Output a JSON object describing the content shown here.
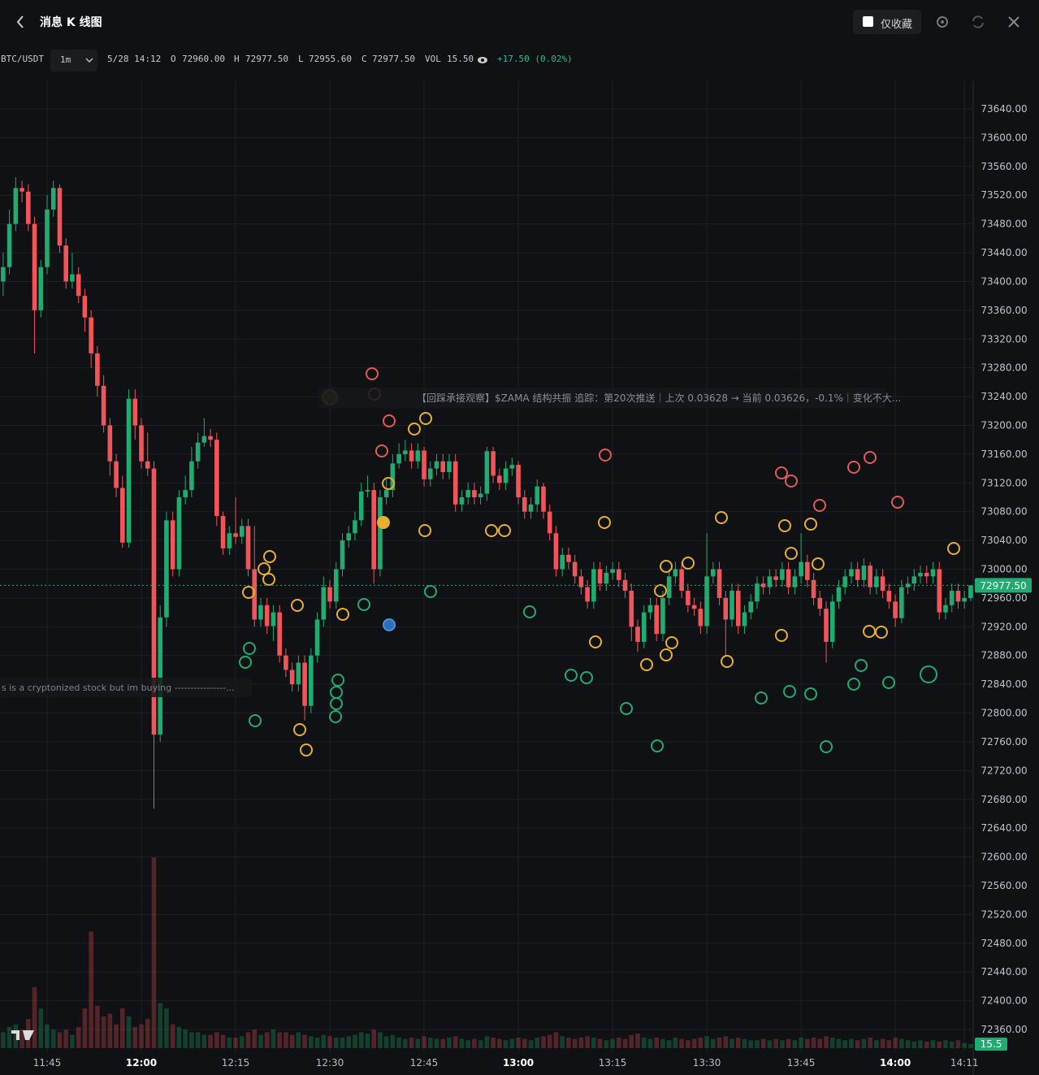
{
  "header": {
    "title": "消息 K 线图",
    "favorites_only": "仅收藏"
  },
  "toolbar": {
    "symbol": "BTC/USDT",
    "interval": "1m",
    "time": "5/28 14:12",
    "o_label": "O",
    "o": "72960.00",
    "h_label": "H",
    "h": "72977.50",
    "l_label": "L",
    "l": "72955.60",
    "c_label": "C",
    "c": "72977.50",
    "vol_label": "VOL",
    "vol": "15.50",
    "change": "+17.50 (0.02%)"
  },
  "chart_data": {
    "type": "candlestick",
    "x": [
      698,
      699,
      700,
      701,
      702,
      703,
      704,
      705,
      706,
      707,
      708,
      709,
      710,
      711,
      712,
      713,
      714,
      715,
      716,
      717,
      718,
      719,
      720,
      721,
      722,
      723,
      724,
      725,
      726,
      727,
      728,
      729,
      730,
      731,
      732,
      733,
      734,
      735,
      736,
      737,
      738,
      739,
      740,
      741,
      742,
      743,
      744,
      745,
      746,
      747,
      748,
      749,
      750,
      751,
      752,
      753,
      754,
      755,
      756,
      757,
      758,
      759,
      760,
      761,
      762,
      763,
      764,
      765,
      766,
      767,
      768,
      769,
      770,
      771,
      772,
      773,
      774,
      775,
      776,
      777,
      778,
      779,
      780,
      781,
      782,
      783,
      784,
      785,
      786,
      787,
      788,
      789,
      790,
      791,
      792,
      793,
      794,
      795,
      796,
      797,
      798,
      799,
      800,
      801,
      802,
      803,
      804,
      805,
      806,
      807,
      808,
      809,
      810,
      811,
      812,
      813,
      814,
      815,
      816,
      817,
      818,
      819,
      820,
      821,
      822,
      823,
      824,
      825,
      826,
      827,
      828,
      829,
      830,
      831,
      832,
      833,
      834,
      835,
      836,
      837,
      838,
      839,
      840,
      841,
      842,
      843,
      844,
      845,
      846,
      847,
      848,
      849,
      850,
      851,
      852
    ],
    "open": [
      73400,
      73420,
      73480,
      73530,
      73525,
      73480,
      73360,
      73420,
      73500,
      73530,
      73450,
      73400,
      73410,
      73380,
      73350,
      73300,
      73255,
      73200,
      73150,
      73113,
      73037,
      73237,
      73200,
      73150,
      73140,
      72770,
      72933,
      73068,
      73000,
      73100,
      73110,
      73150,
      73176,
      73185,
      73180,
      73074,
      73029,
      73050,
      73045,
      73060,
      73000,
      72930,
      72950,
      72921,
      72940,
      72880,
      72860,
      72840,
      72870,
      72810,
      72880,
      72930,
      72975,
      72955,
      73000,
      73040,
      73050,
      73068,
      73108,
      73110,
      73000,
      73100,
      73110,
      73147,
      73160,
      73165,
      73150,
      73165,
      73125,
      73140,
      73150,
      73135,
      73150,
      73090,
      73100,
      73110,
      73100,
      73105,
      73164,
      73130,
      73120,
      73140,
      73145,
      73100,
      73080,
      73090,
      73115,
      73080,
      73050,
      73000,
      73020,
      73010,
      72990,
      72975,
      72955,
      73000,
      72980,
      72995,
      73000,
      72985,
      72970,
      72920,
      72899,
      72940,
      72950,
      72910,
      72960,
      72990,
      73000,
      72970,
      72950,
      72945,
      72921,
      72990,
      73000,
      72960,
      72930,
      72970,
      72921,
      72940,
      72955,
      72980,
      72975,
      72990,
      72985,
      73000,
      72975,
      72990,
      73010,
      72985,
      72960,
      72945,
      72899,
      72955,
      72975,
      72990,
      73000,
      72985,
      73005,
      72975,
      72990,
      72970,
      72955,
      72932,
      72975,
      72980,
      72990,
      72995,
      72990,
      73000,
      72940,
      72950,
      72970,
      72955,
      72960
    ],
    "high": [
      73440,
      73500,
      73545,
      73540,
      73535,
      73490,
      73430,
      73520,
      73540,
      73535,
      73460,
      73440,
      73420,
      73390,
      73360,
      73310,
      73270,
      73210,
      73160,
      73130,
      73250,
      73250,
      73210,
      73190,
      73150,
      72950,
      73080,
      73080,
      73110,
      73130,
      73170,
      73190,
      73210,
      73195,
      73190,
      73080,
      73060,
      73100,
      73070,
      73070,
      73060,
      72960,
      72960,
      72950,
      72950,
      72890,
      72870,
      72880,
      72880,
      72890,
      72940,
      72990,
      72985,
      73010,
      73050,
      73060,
      73080,
      73120,
      73130,
      73120,
      73110,
      73125,
      73160,
      73175,
      73180,
      73175,
      73175,
      73170,
      73150,
      73160,
      73160,
      73160,
      73160,
      73110,
      73120,
      73120,
      73115,
      73170,
      73170,
      73140,
      73150,
      73155,
      73150,
      73110,
      73100,
      73125,
      73120,
      73090,
      73060,
      73030,
      73030,
      73020,
      73000,
      72985,
      73010,
      73010,
      73005,
      73010,
      73010,
      72995,
      72980,
      72930,
      72950,
      72960,
      72960,
      72970,
      73000,
      73010,
      73010,
      72980,
      72960,
      72955,
      73050,
      73010,
      73010,
      72970,
      72980,
      72980,
      72950,
      72965,
      72990,
      72990,
      73000,
      73000,
      73010,
      73010,
      73000,
      73050,
      73020,
      72995,
      72970,
      72955,
      72965,
      72985,
      73000,
      73010,
      73010,
      73015,
      73010,
      73000,
      73000,
      72980,
      72965,
      72985,
      72990,
      73000,
      73005,
      73005,
      73010,
      73010,
      72960,
      72980,
      72980,
      72970,
      72977.5
    ],
    "low": [
      73380,
      73410,
      73470,
      73510,
      73470,
      73300,
      73350,
      73410,
      73490,
      73440,
      73390,
      73390,
      73370,
      73330,
      73280,
      73240,
      73190,
      73130,
      73100,
      73030,
      73030,
      73180,
      73140,
      73130,
      72667,
      72760,
      72920,
      72990,
      72990,
      73090,
      73100,
      73140,
      73170,
      73170,
      73060,
      73020,
      73020,
      73035,
      73035,
      72990,
      72920,
      72920,
      72910,
      72900,
      72870,
      72850,
      72830,
      72830,
      72790,
      72800,
      72870,
      72920,
      72945,
      72945,
      72990,
      73030,
      73040,
      73060,
      73100,
      72980,
      72990,
      73090,
      73100,
      73140,
      73150,
      73140,
      73140,
      73115,
      73115,
      73130,
      73125,
      73125,
      73080,
      73080,
      73090,
      73090,
      73090,
      73095,
      73120,
      73110,
      73110,
      73130,
      73090,
      73070,
      73070,
      73080,
      73070,
      73040,
      72990,
      72990,
      73000,
      72980,
      72965,
      72945,
      72945,
      72970,
      72970,
      72985,
      72975,
      72960,
      72900,
      72885,
      72890,
      72930,
      72900,
      72900,
      72950,
      72980,
      72960,
      72940,
      72935,
      72910,
      72910,
      72980,
      72950,
      72880,
      72920,
      72910,
      72910,
      72930,
      72945,
      72965,
      72965,
      72975,
      72975,
      72965,
      72965,
      72980,
      72975,
      72950,
      72935,
      72870,
      72890,
      72945,
      72965,
      72980,
      72975,
      72975,
      72965,
      72965,
      72960,
      72945,
      72920,
      72925,
      72965,
      72970,
      72980,
      72980,
      72980,
      72930,
      72930,
      72940,
      72945,
      72945,
      72955.6
    ],
    "close": [
      73420,
      73480,
      73530,
      73525,
      73480,
      73360,
      73420,
      73500,
      73530,
      73450,
      73400,
      73410,
      73380,
      73350,
      73300,
      73255,
      73200,
      73150,
      73113,
      73037,
      73237,
      73200,
      73150,
      73140,
      72770,
      72933,
      73068,
      73000,
      73100,
      73110,
      73150,
      73176,
      73185,
      73180,
      73074,
      73029,
      73050,
      73045,
      73060,
      73000,
      72930,
      72950,
      72921,
      72940,
      72880,
      72860,
      72840,
      72870,
      72810,
      72880,
      72930,
      72975,
      72955,
      73000,
      73040,
      73050,
      73068,
      73108,
      73110,
      73000,
      73100,
      73110,
      73147,
      73160,
      73165,
      73150,
      73165,
      73125,
      73140,
      73150,
      73135,
      73150,
      73090,
      73100,
      73110,
      73100,
      73105,
      73164,
      73130,
      73120,
      73140,
      73145,
      73100,
      73080,
      73090,
      73115,
      73080,
      73050,
      73000,
      73020,
      73010,
      72990,
      72975,
      72955,
      73000,
      72980,
      72995,
      73000,
      72985,
      72970,
      72920,
      72899,
      72940,
      72950,
      72910,
      72960,
      72990,
      73000,
      72970,
      72950,
      72945,
      72921,
      72990,
      73000,
      72960,
      72930,
      72970,
      72921,
      72940,
      72955,
      72980,
      72975,
      72990,
      72985,
      73000,
      72975,
      72990,
      73010,
      72985,
      72960,
      72945,
      72899,
      72955,
      72975,
      72990,
      73000,
      72985,
      73005,
      72975,
      72990,
      72970,
      72955,
      72932,
      72975,
      72980,
      72990,
      72995,
      72990,
      73000,
      72940,
      72950,
      72970,
      72955,
      72960,
      72977.5
    ],
    "volume": [
      60,
      80,
      90,
      70,
      110,
      230,
      150,
      90,
      70,
      60,
      70,
      50,
      80,
      150,
      440,
      160,
      120,
      130,
      90,
      150,
      120,
      80,
      90,
      110,
      720,
      170,
      150,
      90,
      80,
      70,
      60,
      60,
      50,
      50,
      60,
      50,
      40,
      40,
      45,
      60,
      70,
      50,
      60,
      70,
      60,
      60,
      50,
      60,
      50,
      45,
      40,
      50,
      45,
      40,
      40,
      45,
      50,
      60,
      55,
      70,
      60,
      45,
      50,
      40,
      35,
      40,
      35,
      45,
      40,
      35,
      35,
      40,
      45,
      35,
      30,
      35,
      30,
      45,
      40,
      35,
      30,
      35,
      40,
      35,
      30,
      40,
      45,
      50,
      60,
      45,
      40,
      35,
      40,
      45,
      40,
      35,
      30,
      35,
      40,
      35,
      50,
      55,
      40,
      35,
      40,
      35,
      30,
      40,
      35,
      30,
      35,
      40,
      45,
      35,
      40,
      45,
      35,
      40,
      35,
      30,
      30,
      35,
      30,
      35,
      30,
      35,
      30,
      40,
      35,
      40,
      35,
      45,
      40,
      35,
      30,
      35,
      30,
      35,
      40,
      30,
      35,
      30,
      40,
      35,
      30,
      25,
      30,
      25,
      30,
      25,
      30,
      25,
      30,
      20,
      15.5
    ],
    "xlim": [
      697.5,
      852.4
    ],
    "xticks": [
      {
        "value": 705,
        "label": "11:45"
      },
      {
        "value": 720,
        "label": "12:00"
      },
      {
        "value": 735,
        "label": "12:15"
      },
      {
        "value": 750,
        "label": "12:30"
      },
      {
        "value": 765,
        "label": "12:45"
      },
      {
        "value": 780,
        "label": "13:00"
      },
      {
        "value": 795,
        "label": "13:15"
      },
      {
        "value": 810,
        "label": "13:30"
      },
      {
        "value": 825,
        "label": "13:45"
      },
      {
        "value": 840,
        "label": "14:00"
      },
      {
        "value": 851,
        "label": "14:11"
      }
    ],
    "ylim": [
      72328.4,
      73678.4
    ],
    "yticks": [
      {
        "value": 73640,
        "label": "73640.00"
      },
      {
        "value": 73600,
        "label": "73600.00"
      },
      {
        "value": 73560,
        "label": "73560.00"
      },
      {
        "value": 73520,
        "label": "73520.00"
      },
      {
        "value": 73480,
        "label": "73480.00"
      },
      {
        "value": 73440,
        "label": "73440.00"
      },
      {
        "value": 73400,
        "label": "73400.00"
      },
      {
        "value": 73360,
        "label": "73360.00"
      },
      {
        "value": 73320,
        "label": "73320.00"
      },
      {
        "value": 73280,
        "label": "73280.00"
      },
      {
        "value": 73240,
        "label": "73240.00"
      },
      {
        "value": 73200,
        "label": "73200.00"
      },
      {
        "value": 73160,
        "label": "73160.00"
      },
      {
        "value": 73120,
        "label": "73120.00"
      },
      {
        "value": 73080,
        "label": "73080.00"
      },
      {
        "value": 73040,
        "label": "73040.00"
      },
      {
        "value": 73000,
        "label": "73000.00"
      },
      {
        "value": 72960,
        "label": "72960.00"
      },
      {
        "value": 72920,
        "label": "72920.00"
      },
      {
        "value": 72880,
        "label": "72880.00"
      },
      {
        "value": 72840,
        "label": "72840.00"
      },
      {
        "value": 72800,
        "label": "72800.00"
      },
      {
        "value": 72760,
        "label": "72760.00"
      },
      {
        "value": 72720,
        "label": "72720.00"
      },
      {
        "value": 72680,
        "label": "72680.00"
      },
      {
        "value": 72640,
        "label": "72640.00"
      },
      {
        "value": 72600,
        "label": "72600.00"
      },
      {
        "value": 72560,
        "label": "72560.00"
      },
      {
        "value": 72520,
        "label": "72520.00"
      },
      {
        "value": 72480,
        "label": "72480.00"
      },
      {
        "value": 72440,
        "label": "72440.00"
      },
      {
        "value": 72400,
        "label": "72400.00"
      },
      {
        "value": 72360,
        "label": "72360.00"
      }
    ],
    "vlim": [
      0,
      800
    ],
    "grid": true,
    "up_color": "#22ab70",
    "down_color": "#f0555a",
    "last_price": {
      "value": 72977.5,
      "label": "72977.50"
    },
    "annotations": [
      "【回踩承接观察】$ZAMA 结构共振 追踪：第20次推送｜上次 0.03628 → 当前 0.03626，-0.1%｜变化不大...",
      "s is a cryptonized stock but im buying ----------------..."
    ]
  }
}
